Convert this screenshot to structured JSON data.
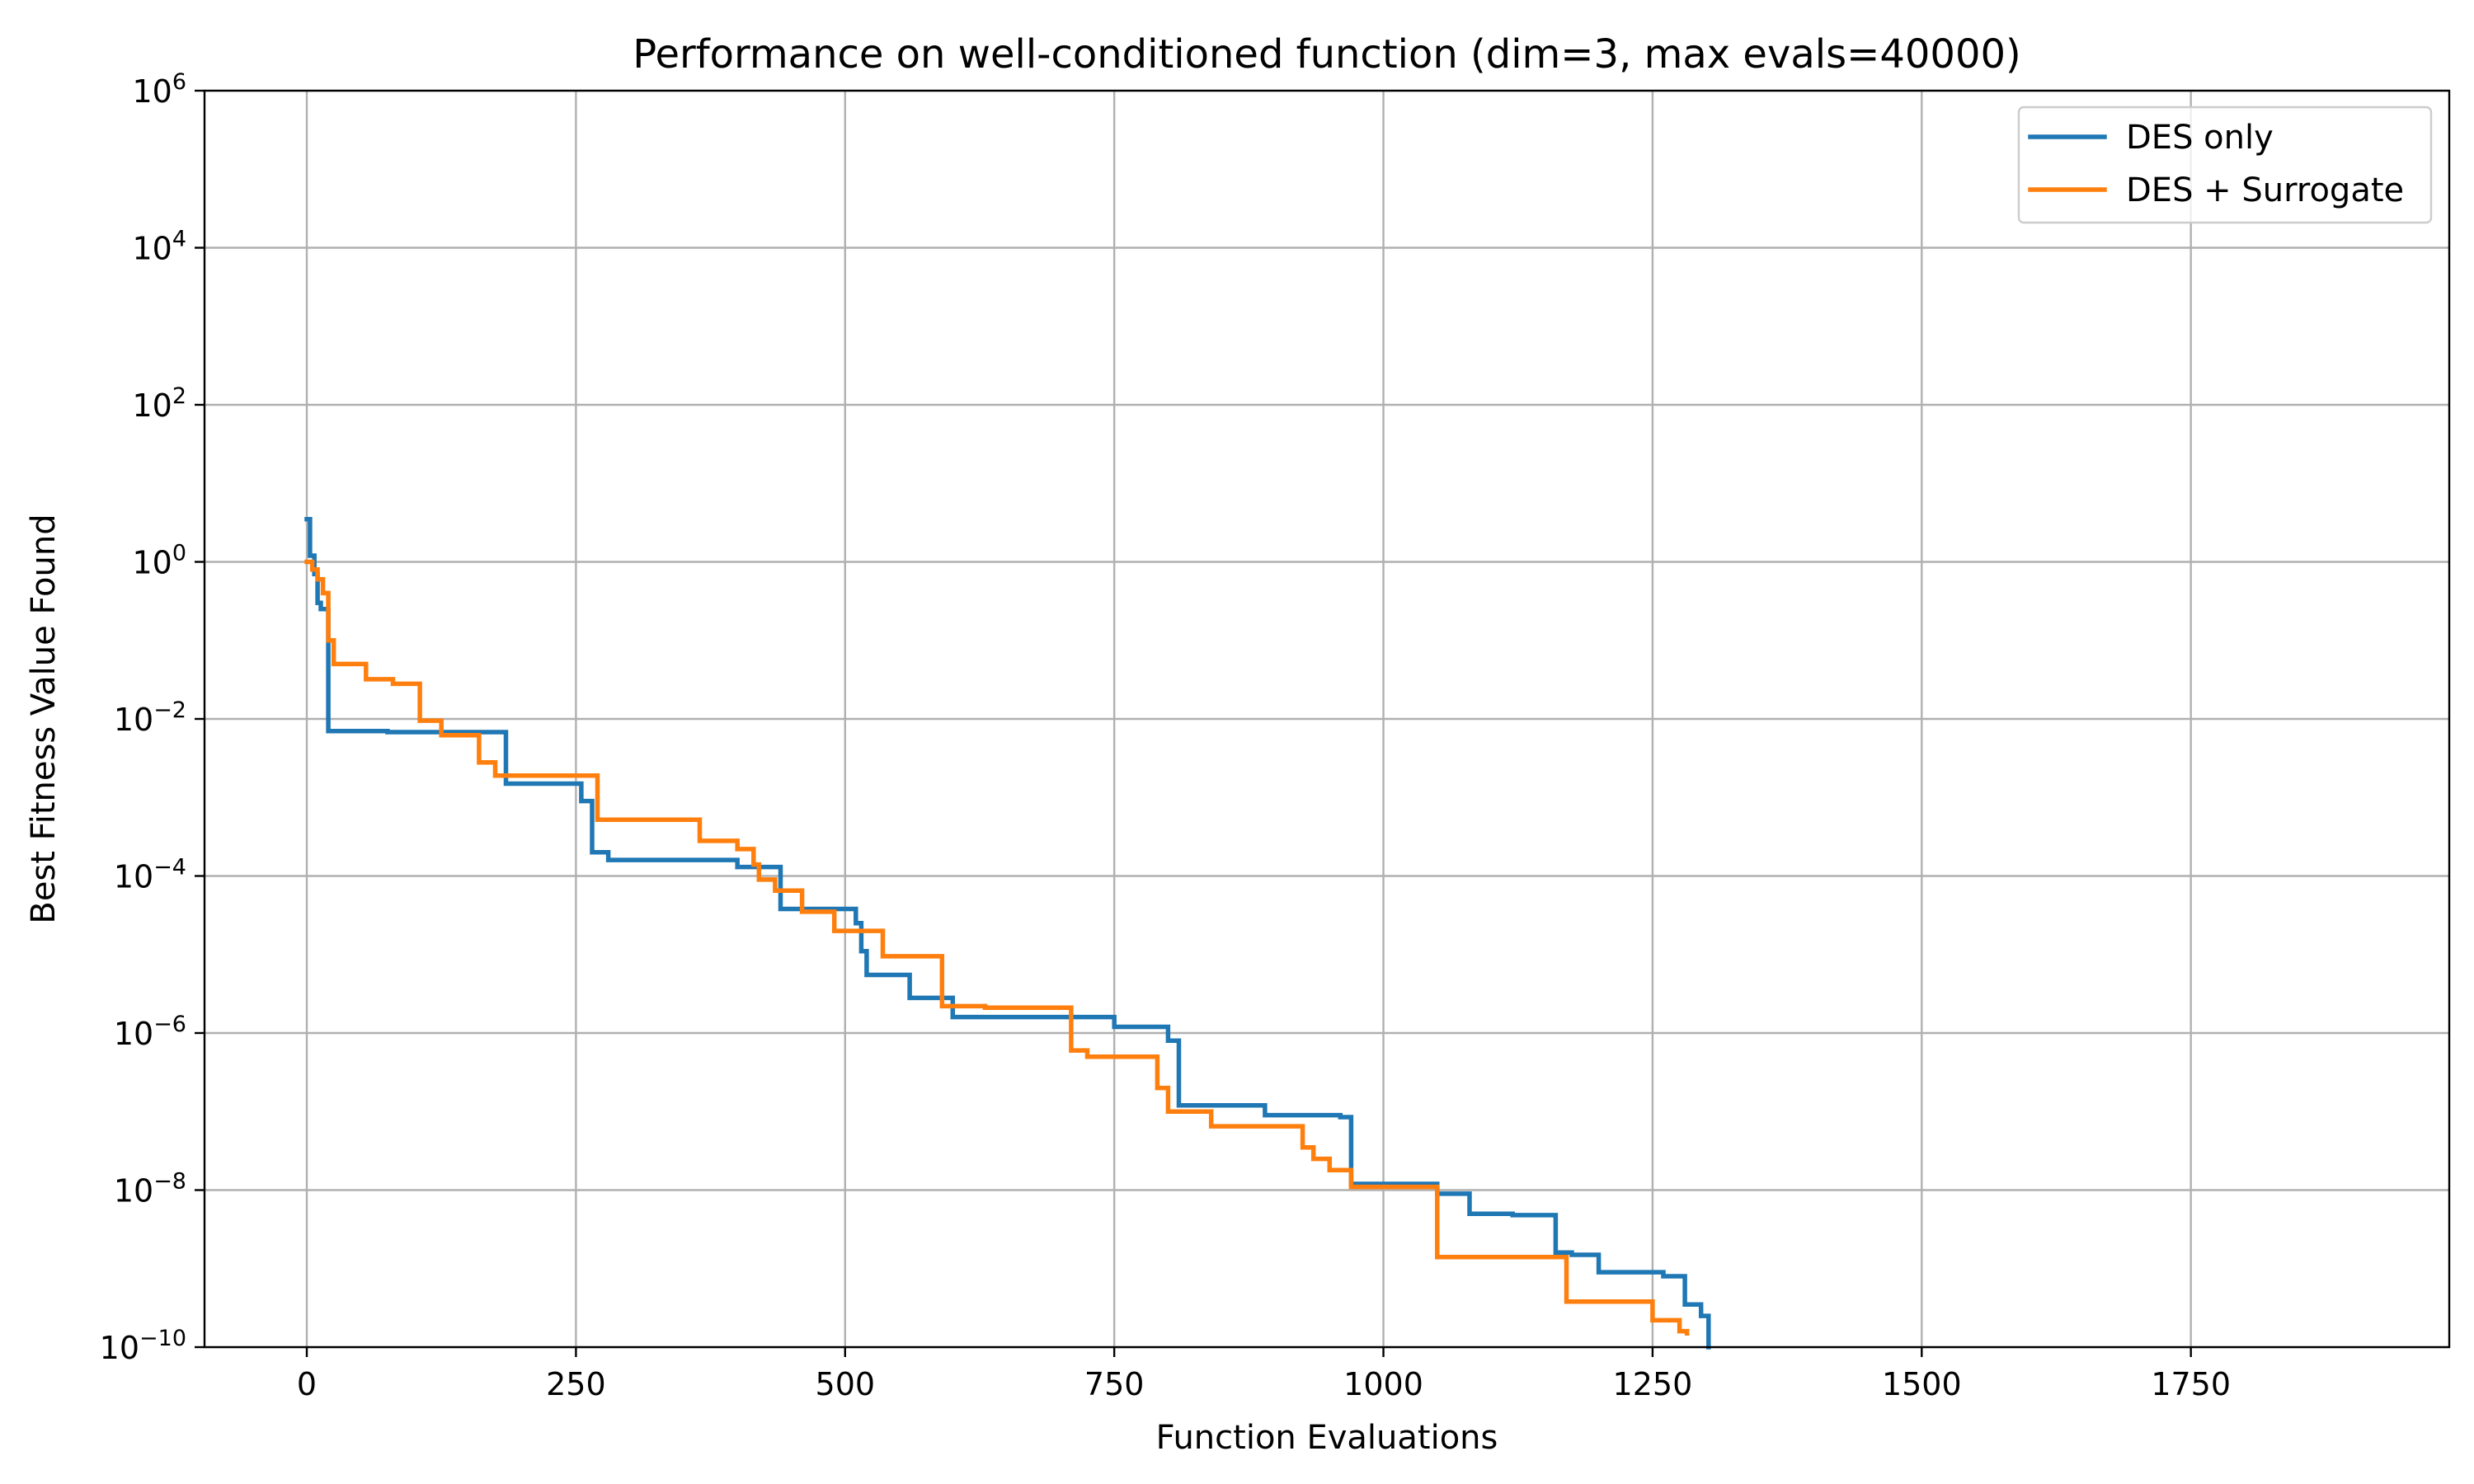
{
  "chart_data": {
    "type": "line",
    "title": "Performance on well-conditioned function (dim=3, max evals=40000)",
    "xlabel": "Function Evaluations",
    "ylabel": "Best Fitness Value Found",
    "y_scale": "log",
    "xlim": [
      -95,
      1990
    ],
    "ylim": [
      1e-10,
      1000000
    ],
    "x_ticks": [
      0,
      250,
      500,
      750,
      1000,
      1250,
      1500,
      1750
    ],
    "x_tick_labels": [
      "0",
      "250",
      "500",
      "750",
      "1000",
      "1250",
      "1500",
      "1750"
    ],
    "y_ticks": [
      {
        "value": 1e-10,
        "base": "10",
        "exp": "−10"
      },
      {
        "value": 1e-08,
        "base": "10",
        "exp": "−8"
      },
      {
        "value": 1e-06,
        "base": "10",
        "exp": "−6"
      },
      {
        "value": 0.0001,
        "base": "10",
        "exp": "−4"
      },
      {
        "value": 0.01,
        "base": "10",
        "exp": "−2"
      },
      {
        "value": 1,
        "base": "10",
        "exp": "0"
      },
      {
        "value": 100,
        "base": "10",
        "exp": "2"
      },
      {
        "value": 10000,
        "base": "10",
        "exp": "4"
      },
      {
        "value": 1000000,
        "base": "10",
        "exp": "6"
      }
    ],
    "grid": true,
    "legend_position": "top-right",
    "series": [
      {
        "name": "DES only",
        "color": "#1f77b4",
        "x": [
          0,
          3,
          7,
          10,
          13,
          20,
          75,
          185,
          255,
          265,
          280,
          400,
          440,
          510,
          515,
          520,
          560,
          600,
          750,
          800,
          810,
          890,
          960,
          970,
          1050,
          1080,
          1120,
          1160,
          1175,
          1200,
          1260,
          1280,
          1295,
          1302
        ],
        "y": [
          3.5,
          1.2,
          0.7,
          0.3,
          0.25,
          0.007,
          0.0068,
          0.0015,
          0.0009,
          0.0002,
          0.00016,
          0.00013,
          3.8e-05,
          2.5e-05,
          1.1e-05,
          5.5e-06,
          2.8e-06,
          1.6e-06,
          1.2e-06,
          8e-07,
          1.2e-07,
          9e-08,
          8.5e-08,
          1.2e-08,
          9e-09,
          5e-09,
          4.8e-09,
          1.6e-09,
          1.5e-09,
          9e-10,
          8e-10,
          3.5e-10,
          2.5e-10,
          1e-10
        ]
      },
      {
        "name": "DES + Surrogate",
        "color": "#ff7f0e",
        "x": [
          0,
          5,
          10,
          15,
          20,
          25,
          55,
          80,
          105,
          125,
          160,
          175,
          260,
          270,
          365,
          400,
          415,
          420,
          435,
          460,
          490,
          535,
          590,
          630,
          710,
          725,
          790,
          800,
          840,
          925,
          935,
          950,
          970,
          1050,
          1170,
          1250,
          1275,
          1282
        ],
        "y": [
          1.0,
          0.8,
          0.6,
          0.4,
          0.1,
          0.05,
          0.032,
          0.028,
          0.0095,
          0.0062,
          0.0028,
          0.0019,
          0.0019,
          0.00052,
          0.00028,
          0.00022,
          0.00014,
          9e-05,
          6.5e-05,
          3.5e-05,
          2e-05,
          9.5e-06,
          2.2e-06,
          2.1e-06,
          6e-07,
          5e-07,
          2e-07,
          1e-07,
          6.5e-08,
          3.5e-08,
          2.5e-08,
          1.8e-08,
          1.1e-08,
          1.4e-09,
          3.8e-10,
          2.2e-10,
          1.6e-10,
          1.5e-10
        ]
      }
    ]
  }
}
